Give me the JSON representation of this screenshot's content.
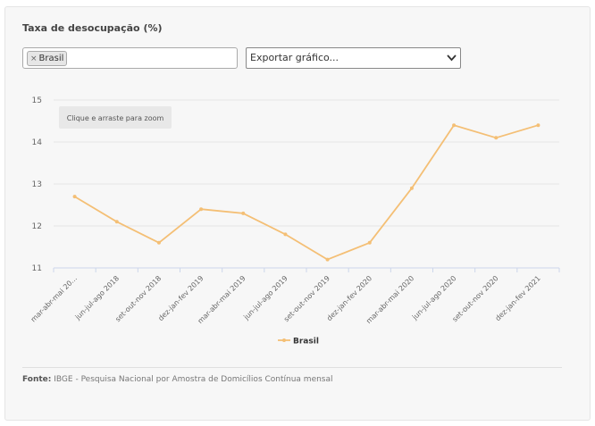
{
  "title": "Taxa de desocupação (%)",
  "filter": {
    "tag_label": "Brasil",
    "remove_icon": "close-icon"
  },
  "export_select": {
    "label": "Exportar gráfico...",
    "icon": "chevron-down-icon"
  },
  "zoom_hint": "Clique e arraste para zoom",
  "source": {
    "label": "Fonte:",
    "text": "IBGE - Pesquisa Nacional por Amostra de Domicílios Contínua mensal"
  },
  "chart_data": {
    "type": "line",
    "title": "",
    "xlabel": "",
    "ylabel": "",
    "categories": [
      "mar-abr-mai 20...",
      "jun-jul-ago 2018",
      "set-out-nov 2018",
      "dez-jan-fev 2019",
      "mar-abr-mai 2019",
      "jun-jul-ago 2019",
      "set-out-nov 2019",
      "dez-jan-fev 2020",
      "mar-abr-mai 2020",
      "jun-jul-ago 2020",
      "set-out-nov 2020",
      "dez-jan-fev 2021"
    ],
    "series": [
      {
        "name": "Brasil",
        "values": [
          12.7,
          12.1,
          11.6,
          12.4,
          12.3,
          11.8,
          11.2,
          11.6,
          12.9,
          14.4,
          14.1,
          14.4
        ],
        "color": "#f4bf75"
      }
    ],
    "yticks": [
      11,
      12,
      13,
      14,
      15
    ],
    "ylim": [
      11,
      15
    ],
    "grid": true,
    "legend": "bottom-center"
  }
}
